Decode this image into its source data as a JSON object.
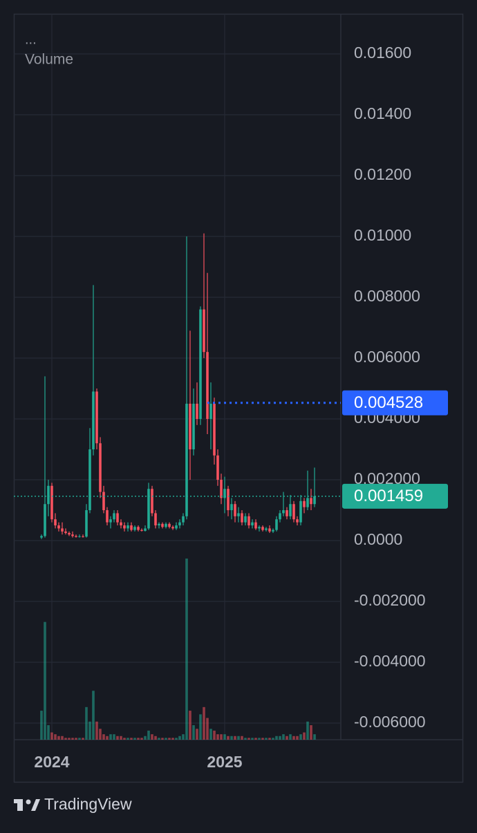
{
  "chart_data": {
    "type": "candlestick",
    "menu": "...",
    "indicator_label": "Volume",
    "brand": "TradingView",
    "up_color": "#22ab94",
    "down_color": "#f7525f",
    "grid": true,
    "xlim": [
      2023.78,
      2025.672
    ],
    "xticks": [
      2024,
      2025
    ],
    "ylim": [
      -0.006545,
      0.017318
    ],
    "yticks": [
      {
        "value": 0.016,
        "label": "0.01600"
      },
      {
        "value": 0.014,
        "label": "0.01400"
      },
      {
        "value": 0.012,
        "label": "0.01200"
      },
      {
        "value": 0.01,
        "label": "0.01000"
      },
      {
        "value": 0.008,
        "label": "0.008000"
      },
      {
        "value": 0.006,
        "label": "0.006000"
      },
      {
        "value": 0.004,
        "label": "0.004000"
      },
      {
        "value": 0.002,
        "label": "0.002000"
      },
      {
        "value": 0,
        "label": "0.0000"
      },
      {
        "value": -0.002,
        "label": "-0.002000"
      },
      {
        "value": -0.004,
        "label": "-0.004000"
      },
      {
        "value": -0.006,
        "label": "-0.006000"
      }
    ],
    "price_lines": [
      {
        "value": 0.004528,
        "color": "#2962ff"
      },
      {
        "value": 0.001459,
        "color": "#22ab94"
      }
    ],
    "x": [
      2023.94,
      2023.96,
      2023.98,
      2024,
      2024.02,
      2024.04,
      2024.06,
      2024.08,
      2024.1,
      2024.12,
      2024.14,
      2024.16,
      2024.18,
      2024.2,
      2024.22,
      2024.24,
      2024.26,
      2024.28,
      2024.3,
      2024.32,
      2024.34,
      2024.36,
      2024.38,
      2024.4,
      2024.42,
      2024.44,
      2024.46,
      2024.48,
      2024.5,
      2024.52,
      2024.54,
      2024.56,
      2024.58,
      2024.6,
      2024.62,
      2024.64,
      2024.66,
      2024.68,
      2024.7,
      2024.72,
      2024.74,
      2024.76,
      2024.78,
      2024.8,
      2024.82,
      2024.84,
      2024.86,
      2024.88,
      2024.9,
      2024.92,
      2024.94,
      2024.96,
      2024.98,
      2025,
      2025.02,
      2025.04,
      2025.06,
      2025.08,
      2025.1,
      2025.12,
      2025.14,
      2025.16,
      2025.18,
      2025.2,
      2025.22,
      2025.24,
      2025.26,
      2025.28,
      2025.3,
      2025.32,
      2025.34,
      2025.36,
      2025.38,
      2025.4,
      2025.42,
      2025.44,
      2025.46,
      2025.48,
      2025.5,
      2025.52
    ],
    "open": [
      0.0001,
      0.00015,
      0.0012,
      0.0018,
      0.0007,
      0.0005,
      0.0004,
      0.0003,
      0.00025,
      0.0002,
      0.00015,
      0.00012,
      0.00014,
      0.00013,
      0.001,
      0.003,
      0.0049,
      0.0032,
      0.0016,
      0.001,
      0.0006,
      0.0007,
      0.0009,
      0.0006,
      0.0005,
      0.0004,
      0.0005,
      0.00035,
      0.00045,
      0.00035,
      0.00032,
      0.0004,
      0.0017,
      0.0009,
      0.0005,
      0.00055,
      0.00045,
      0.00055,
      0.00045,
      0.0004,
      0.0005,
      0.0006,
      0.0008,
      0.0045,
      0.003,
      0.0045,
      0.004,
      0.0076,
      0.0062,
      0.004,
      0.0045,
      0.0028,
      0.002,
      0.0014,
      0.0017,
      0.001,
      0.0012,
      0.0008,
      0.0009,
      0.0006,
      0.0008,
      0.0005,
      0.0006,
      0.0004,
      0.00045,
      0.00035,
      0.0004,
      0.0003,
      0.00035,
      0.0007,
      0.0009,
      0.001,
      0.0008,
      0.0012,
      0.0007,
      0.0006,
      0.0013,
      0.0011,
      0.0014,
      0.0012
    ],
    "high": [
      0.0002,
      0.0054,
      0.002,
      0.0019,
      0.0009,
      0.0006,
      0.0006,
      0.0004,
      0.0003,
      0.0003,
      0.0002,
      0.0002,
      0.0002,
      0.0012,
      0.0037,
      0.0084,
      0.005,
      0.0034,
      0.0018,
      0.0011,
      0.0008,
      0.001,
      0.001,
      0.0007,
      0.0006,
      0.0006,
      0.0006,
      0.0005,
      0.0005,
      0.0004,
      0.0005,
      0.0019,
      0.0018,
      0.001,
      0.0006,
      0.0006,
      0.0006,
      0.0006,
      0.0005,
      0.0006,
      0.0007,
      0.0009,
      0.01,
      0.0069,
      0.005,
      0.0052,
      0.0077,
      0.0101,
      0.0088,
      0.0052,
      0.0047,
      0.003,
      0.0022,
      0.0021,
      0.0018,
      0.0014,
      0.0013,
      0.0011,
      0.001,
      0.0009,
      0.0009,
      0.0007,
      0.0007,
      0.0005,
      0.0005,
      0.00045,
      0.0005,
      0.0004,
      0.0008,
      0.001,
      0.0016,
      0.0011,
      0.0015,
      0.0013,
      0.0008,
      0.0015,
      0.0014,
      0.0023,
      0.0017,
      0.0024
    ],
    "low": [
      5e-05,
      0.0001,
      0.0008,
      0.0006,
      0.0004,
      0.0003,
      0.0002,
      0.0002,
      0.00015,
      0.0001,
      0.0001,
      0.0001,
      0.0001,
      0.0001,
      0.0009,
      0.0028,
      0.003,
      0.0014,
      0.0009,
      0.0005,
      0.0004,
      0.0006,
      0.0005,
      0.0004,
      0.0003,
      0.0003,
      0.0003,
      0.0003,
      0.0003,
      0.0003,
      0.0003,
      0.00035,
      0.0008,
      0.0004,
      0.0004,
      0.0004,
      0.0004,
      0.0004,
      0.00035,
      0.00035,
      0.0004,
      0.0005,
      0.0007,
      0.002,
      0.0028,
      0.0038,
      0.0038,
      0.006,
      0.0035,
      0.003,
      0.0025,
      0.0018,
      0.0012,
      0.0009,
      0.0008,
      0.0007,
      0.0006,
      0.0006,
      0.0005,
      0.0005,
      0.0004,
      0.0004,
      0.00035,
      0.0003,
      0.0003,
      0.0003,
      0.00025,
      0.00025,
      0.0003,
      0.0006,
      0.0008,
      0.0007,
      0.0007,
      0.0006,
      0.0005,
      0.0005,
      0.0009,
      0.001,
      0.001,
      0.0011
    ],
    "close": [
      0.00015,
      0.0012,
      0.0018,
      0.0007,
      0.0005,
      0.0004,
      0.0003,
      0.00025,
      0.0002,
      0.00015,
      0.00012,
      0.00014,
      0.00013,
      0.001,
      0.003,
      0.0049,
      0.0032,
      0.0016,
      0.001,
      0.0006,
      0.0007,
      0.0009,
      0.0006,
      0.0005,
      0.0004,
      0.0005,
      0.00035,
      0.00045,
      0.00035,
      0.00032,
      0.0004,
      0.0017,
      0.0009,
      0.0005,
      0.00055,
      0.00045,
      0.00055,
      0.00045,
      0.0004,
      0.0005,
      0.0006,
      0.0008,
      0.0045,
      0.003,
      0.0045,
      0.004,
      0.0076,
      0.0062,
      0.004,
      0.0045,
      0.0028,
      0.002,
      0.0014,
      0.0017,
      0.001,
      0.0012,
      0.0008,
      0.0009,
      0.0006,
      0.0008,
      0.0005,
      0.0006,
      0.0004,
      0.00045,
      0.00035,
      0.0004,
      0.0003,
      0.00035,
      0.0007,
      0.0009,
      0.001,
      0.0008,
      0.0012,
      0.0007,
      0.0006,
      0.0013,
      0.0011,
      0.0014,
      0.0012,
      0.001459
    ],
    "volume": [
      16,
      65,
      8,
      4,
      3,
      2,
      2,
      1,
      1,
      1,
      1,
      1,
      1,
      18,
      10,
      27,
      10,
      6,
      3,
      2,
      3,
      3,
      2,
      2,
      1,
      1,
      1,
      1,
      1,
      1,
      2,
      5,
      3,
      2,
      1,
      1,
      1,
      1,
      1,
      1,
      2,
      3,
      100,
      16,
      8,
      6,
      14,
      18,
      12,
      6,
      5,
      3,
      3,
      3,
      2,
      2,
      2,
      2,
      2,
      1,
      1,
      1,
      1,
      1,
      1,
      1,
      1,
      1,
      2,
      2,
      3,
      2,
      3,
      2,
      2,
      3,
      4,
      10,
      8,
      3
    ]
  }
}
